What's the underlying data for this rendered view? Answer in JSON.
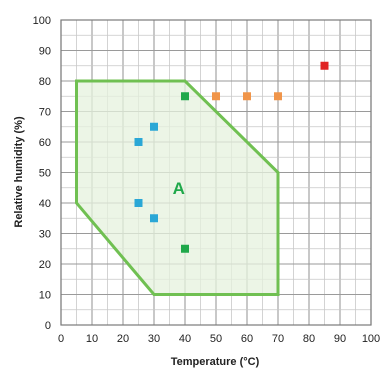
{
  "chart_data": {
    "type": "scatter",
    "title": "",
    "xlabel": "Temperature (°C)",
    "ylabel": "Relative humidity (%)",
    "xlim": [
      0,
      100
    ],
    "ylim": [
      0,
      100
    ],
    "xticks": [
      0,
      10,
      20,
      30,
      40,
      50,
      60,
      70,
      80,
      90,
      100
    ],
    "yticks": [
      0,
      10,
      20,
      30,
      40,
      50,
      60,
      70,
      80,
      90,
      100
    ],
    "xtick_labels": [
      "0",
      "10",
      "20",
      "30",
      "40",
      "50",
      "60",
      "70",
      "80",
      "90",
      "100"
    ],
    "ytick_labels": [
      "0",
      "10",
      "20",
      "30",
      "40",
      "50",
      "60",
      "70",
      "80",
      "90",
      "100"
    ],
    "minor_grid_step": 5,
    "grid": true,
    "region": {
      "label": "A",
      "label_at": [
        38,
        45
      ],
      "fill_color": "#e6f1de",
      "stroke_color": "#70c052",
      "vertices": [
        [
          5,
          80
        ],
        [
          40,
          80
        ],
        [
          70,
          50
        ],
        [
          70,
          10
        ],
        [
          30,
          10
        ],
        [
          5,
          40
        ]
      ]
    },
    "series": [
      {
        "color": "#2aa7d6",
        "points": [
          [
            25,
            60
          ],
          [
            30,
            65
          ],
          [
            25,
            40
          ],
          [
            30,
            35
          ]
        ]
      },
      {
        "color": "#1fa84a",
        "points": [
          [
            40,
            75
          ],
          [
            40,
            25
          ]
        ]
      },
      {
        "color": "#f0954a",
        "points": [
          [
            50,
            75
          ],
          [
            60,
            75
          ],
          [
            70,
            75
          ]
        ]
      },
      {
        "color": "#e02424",
        "points": [
          [
            85,
            85
          ]
        ]
      }
    ]
  }
}
